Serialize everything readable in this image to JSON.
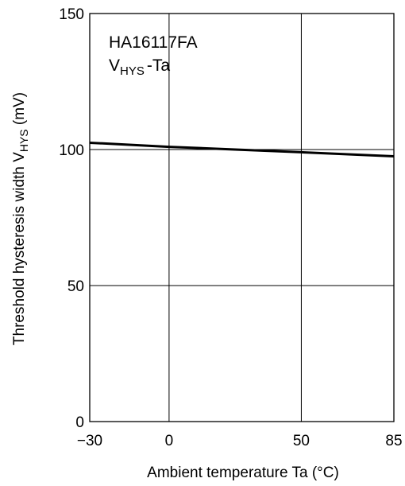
{
  "chart_data": {
    "type": "line",
    "annotation": {
      "title": "HA16117FA",
      "subtitle_main": "V",
      "subtitle_sub": "HYS",
      "subtitle_rest": "-Ta"
    },
    "xlabel": "Ambient temperature  Ta  (°C)",
    "ylabel_main": "Threshold hysteresis width  V",
    "ylabel_sub": "HYS",
    "ylabel_rest": "  (mV)",
    "x_ticks": [
      -30,
      0,
      50,
      85
    ],
    "x_tick_labels": [
      "−30",
      "0",
      "50",
      "85"
    ],
    "y_ticks": [
      0,
      50,
      100,
      150
    ],
    "y_tick_labels": [
      "0",
      "50",
      "100",
      "150"
    ],
    "xlim": [
      -30,
      85
    ],
    "ylim": [
      0,
      150
    ],
    "grid": true,
    "series": [
      {
        "x": [
          -30,
          0,
          25,
          50,
          85
        ],
        "y": [
          102.5,
          101,
          100,
          99,
          97.5
        ]
      }
    ]
  }
}
